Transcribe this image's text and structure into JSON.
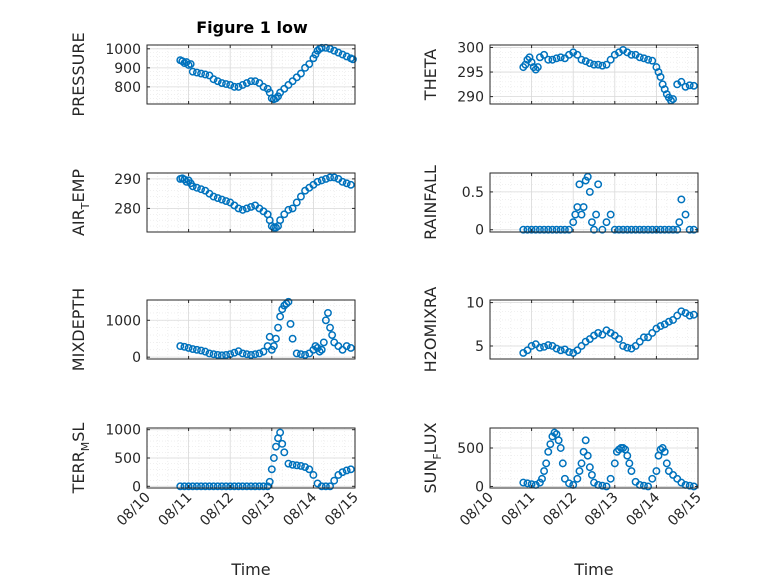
{
  "figure": {
    "title": "Figure 1 low",
    "marker_color": "#0072BD",
    "axis_color": "#262626",
    "grid_color": "#d9d9d9"
  },
  "chart_data": [
    {
      "type": "scatter",
      "panel": "top-left",
      "title": "Figure 1 low",
      "ylabel": "PRESSURE",
      "xlabel": "",
      "ylim": [
        710,
        1020
      ],
      "yticks": [
        800,
        900,
        1000
      ],
      "xlim": [
        0,
        5
      ],
      "xticks": [],
      "xticklabels": [],
      "grid": true,
      "minor_grid": true,
      "series": [
        {
          "x": [
            0.8,
            0.85,
            0.9,
            0.95,
            1.0,
            1.05,
            1.1,
            1.2,
            1.3,
            1.4,
            1.5,
            1.6,
            1.7,
            1.8,
            1.9,
            2.0,
            2.1,
            2.2,
            2.3,
            2.4,
            2.5,
            2.6,
            2.7,
            2.8,
            2.9,
            2.95,
            3.0,
            3.05,
            3.1,
            3.15,
            3.2,
            3.3,
            3.4,
            3.5,
            3.6,
            3.7,
            3.8,
            3.9,
            4.0,
            4.05,
            4.1,
            4.15,
            4.2,
            4.3,
            4.4,
            4.5,
            4.6,
            4.7,
            4.8,
            4.9,
            4.95
          ],
          "y": [
            940,
            935,
            925,
            930,
            915,
            920,
            880,
            875,
            870,
            865,
            860,
            840,
            830,
            820,
            815,
            810,
            800,
            800,
            810,
            820,
            830,
            830,
            820,
            800,
            790,
            770,
            740,
            735,
            740,
            750,
            770,
            790,
            810,
            830,
            850,
            870,
            900,
            920,
            950,
            970,
            990,
            1000,
            1005,
            1005,
            1000,
            990,
            980,
            970,
            960,
            950,
            945
          ]
        }
      ]
    },
    {
      "type": "scatter",
      "panel": "top-right",
      "ylabel": "THETA",
      "xlabel": "",
      "ylim": [
        288.5,
        300.5
      ],
      "yticks": [
        290,
        295,
        300
      ],
      "xlim": [
        0,
        5
      ],
      "xticks": [],
      "xticklabels": [],
      "grid": true,
      "minor_grid": true,
      "series": [
        {
          "x": [
            0.8,
            0.85,
            0.9,
            0.95,
            1.0,
            1.05,
            1.1,
            1.15,
            1.2,
            1.3,
            1.4,
            1.5,
            1.6,
            1.7,
            1.8,
            1.9,
            2.0,
            2.1,
            2.2,
            2.3,
            2.4,
            2.5,
            2.6,
            2.7,
            2.8,
            2.9,
            3.0,
            3.1,
            3.2,
            3.3,
            3.4,
            3.5,
            3.6,
            3.7,
            3.8,
            3.9,
            4.0,
            4.05,
            4.1,
            4.15,
            4.2,
            4.25,
            4.3,
            4.35,
            4.4,
            4.5,
            4.6,
            4.7,
            4.8,
            4.9
          ],
          "y": [
            296,
            296.5,
            297.5,
            298,
            297,
            296,
            295.5,
            296,
            298,
            298.5,
            297.5,
            297.5,
            297.8,
            298,
            297.8,
            298.5,
            299,
            298.5,
            297.5,
            297.2,
            296.8,
            296.5,
            296.5,
            296.3,
            296.5,
            297.5,
            298.5,
            299,
            299.5,
            299,
            298.5,
            298.5,
            298,
            297.8,
            297.5,
            297.3,
            296,
            295,
            294,
            292.5,
            291.5,
            290.5,
            289.8,
            289.2,
            289.5,
            292.5,
            293,
            292,
            292.3,
            292.2
          ]
        }
      ]
    },
    {
      "type": "scatter",
      "panel": "second-left",
      "ylabel": "AIR",
      "ylabel_sub": "T",
      "ylabel_tail": "EMP",
      "xlabel": "",
      "ylim": [
        272,
        292
      ],
      "yticks": [
        280,
        290
      ],
      "xlim": [
        0,
        5
      ],
      "xticks": [],
      "xticklabels": [],
      "grid": true,
      "minor_grid": true,
      "series": [
        {
          "x": [
            0.8,
            0.85,
            0.9,
            0.95,
            1.0,
            1.05,
            1.1,
            1.2,
            1.3,
            1.4,
            1.5,
            1.6,
            1.7,
            1.8,
            1.9,
            2.0,
            2.1,
            2.2,
            2.3,
            2.4,
            2.5,
            2.6,
            2.7,
            2.8,
            2.9,
            2.95,
            3.0,
            3.05,
            3.1,
            3.15,
            3.2,
            3.3,
            3.4,
            3.5,
            3.6,
            3.7,
            3.8,
            3.9,
            4.0,
            4.1,
            4.2,
            4.3,
            4.4,
            4.5,
            4.6,
            4.7,
            4.8,
            4.9
          ],
          "y": [
            290,
            290.2,
            289.8,
            289,
            289.5,
            288.5,
            287.5,
            287,
            286.5,
            286,
            285,
            284,
            283.5,
            283,
            282.5,
            282,
            281,
            280,
            279.5,
            280,
            280.5,
            281,
            280,
            279,
            278,
            276,
            274,
            273.5,
            273.5,
            274,
            276,
            278,
            279.5,
            280,
            282,
            284,
            286,
            287,
            288,
            289,
            289.5,
            290,
            290.5,
            290.5,
            290,
            289,
            288.5,
            288
          ]
        }
      ]
    },
    {
      "type": "scatter",
      "panel": "second-right",
      "ylabel": "RAINFALL",
      "xlabel": "",
      "ylim": [
        -0.03,
        0.75
      ],
      "yticks": [
        0,
        0.5
      ],
      "xlim": [
        0,
        5
      ],
      "xticks": [],
      "xticklabels": [],
      "grid": true,
      "minor_grid": true,
      "series": [
        {
          "x": [
            0.8,
            0.9,
            1.0,
            1.1,
            1.2,
            1.3,
            1.4,
            1.5,
            1.6,
            1.7,
            1.8,
            1.9,
            2.0,
            2.05,
            2.1,
            2.15,
            2.2,
            2.25,
            2.3,
            2.35,
            2.4,
            2.45,
            2.5,
            2.55,
            2.6,
            2.7,
            2.8,
            2.9,
            3.0,
            3.1,
            3.2,
            3.3,
            3.4,
            3.5,
            3.6,
            3.7,
            3.8,
            3.9,
            4.0,
            4.1,
            4.2,
            4.3,
            4.4,
            4.5,
            4.55,
            4.6,
            4.7,
            4.8,
            4.9
          ],
          "y": [
            0,
            0,
            0,
            0,
            0,
            0,
            0,
            0,
            0,
            0,
            0,
            0,
            0.1,
            0.2,
            0.3,
            0.6,
            0.2,
            0.3,
            0.65,
            0.7,
            0.5,
            0.1,
            0,
            0.2,
            0.6,
            0,
            0.1,
            0.2,
            0,
            0,
            0,
            0,
            0,
            0,
            0,
            0,
            0,
            0,
            0,
            0,
            0,
            0,
            0,
            0,
            0.1,
            0.4,
            0.2,
            0,
            0
          ]
        }
      ]
    },
    {
      "type": "scatter",
      "panel": "third-left",
      "ylabel": "MIXDEPTH",
      "xlabel": "",
      "ylim": [
        -50,
        1550
      ],
      "yticks": [
        0,
        1000
      ],
      "xlim": [
        0,
        5
      ],
      "xticks": [],
      "xticklabels": [],
      "grid": true,
      "minor_grid": true,
      "series": [
        {
          "x": [
            0.8,
            0.9,
            1.0,
            1.1,
            1.2,
            1.3,
            1.4,
            1.5,
            1.6,
            1.7,
            1.8,
            1.9,
            2.0,
            2.1,
            2.2,
            2.3,
            2.4,
            2.5,
            2.6,
            2.7,
            2.8,
            2.9,
            2.95,
            3.0,
            3.05,
            3.1,
            3.15,
            3.2,
            3.25,
            3.3,
            3.35,
            3.4,
            3.45,
            3.5,
            3.6,
            3.7,
            3.8,
            3.9,
            4.0,
            4.05,
            4.1,
            4.15,
            4.2,
            4.25,
            4.3,
            4.35,
            4.4,
            4.45,
            4.5,
            4.6,
            4.7,
            4.8,
            4.9
          ],
          "y": [
            300,
            280,
            250,
            220,
            200,
            180,
            150,
            100,
            80,
            60,
            50,
            60,
            80,
            120,
            160,
            100,
            80,
            60,
            80,
            100,
            150,
            300,
            550,
            200,
            300,
            500,
            800,
            1100,
            1300,
            1400,
            1450,
            1500,
            900,
            500,
            100,
            80,
            60,
            100,
            200,
            300,
            250,
            150,
            200,
            400,
            1000,
            1200,
            800,
            600,
            400,
            300,
            200,
            300,
            250
          ]
        }
      ]
    },
    {
      "type": "scatter",
      "panel": "third-right",
      "ylabel": "H2OMIXRA",
      "xlabel": "",
      "ylim": [
        3.5,
        10.3
      ],
      "yticks": [
        5,
        10
      ],
      "xlim": [
        0,
        5
      ],
      "xticks": [],
      "xticklabels": [],
      "grid": true,
      "minor_grid": true,
      "series": [
        {
          "x": [
            0.8,
            0.9,
            1.0,
            1.1,
            1.2,
            1.3,
            1.4,
            1.5,
            1.6,
            1.7,
            1.8,
            1.9,
            2.0,
            2.1,
            2.2,
            2.3,
            2.4,
            2.5,
            2.6,
            2.7,
            2.8,
            2.9,
            3.0,
            3.1,
            3.2,
            3.3,
            3.4,
            3.5,
            3.6,
            3.7,
            3.8,
            3.9,
            4.0,
            4.1,
            4.2,
            4.3,
            4.4,
            4.5,
            4.6,
            4.7,
            4.8,
            4.9
          ],
          "y": [
            4.2,
            4.5,
            5,
            5.2,
            4.8,
            4.9,
            5.1,
            5,
            4.7,
            4.5,
            4.6,
            4.3,
            4.2,
            4.5,
            5,
            5.5,
            5.8,
            6.2,
            6.5,
            6.3,
            6.8,
            6.5,
            6.2,
            5.8,
            5,
            4.8,
            4.7,
            5,
            5.5,
            6,
            6,
            6.5,
            7,
            7.3,
            7.5,
            7.8,
            8,
            8.5,
            9,
            8.8,
            8.5,
            8.6
          ]
        }
      ]
    },
    {
      "type": "scatter",
      "panel": "bottom-left",
      "ylabel": "TERR",
      "ylabel_sub": "M",
      "ylabel_tail": "SL",
      "xlabel": "Time",
      "ylim": [
        -30,
        1030
      ],
      "yticks": [
        0,
        500,
        1000
      ],
      "xlim": [
        0,
        5
      ],
      "xticks": [
        0,
        1,
        2,
        3,
        4,
        5
      ],
      "xticklabels": [
        "08/10",
        "08/11",
        "08/12",
        "08/13",
        "08/14",
        "08/15"
      ],
      "grid": true,
      "minor_grid": true,
      "series": [
        {
          "x": [
            0.8,
            0.9,
            1.0,
            1.1,
            1.2,
            1.3,
            1.4,
            1.5,
            1.6,
            1.7,
            1.8,
            1.9,
            2.0,
            2.1,
            2.2,
            2.3,
            2.4,
            2.5,
            2.6,
            2.7,
            2.8,
            2.9,
            2.95,
            3.0,
            3.05,
            3.1,
            3.15,
            3.2,
            3.25,
            3.3,
            3.4,
            3.5,
            3.6,
            3.7,
            3.8,
            3.9,
            4.0,
            4.1,
            4.2,
            4.3,
            4.4,
            4.5,
            4.6,
            4.7,
            4.8,
            4.9
          ],
          "y": [
            0,
            0,
            0,
            0,
            0,
            0,
            0,
            0,
            0,
            0,
            0,
            0,
            0,
            0,
            0,
            0,
            0,
            0,
            0,
            0,
            0,
            0,
            80,
            300,
            500,
            700,
            850,
            950,
            750,
            600,
            400,
            380,
            370,
            360,
            340,
            300,
            200,
            50,
            0,
            0,
            0,
            100,
            200,
            250,
            280,
            300
          ]
        }
      ]
    },
    {
      "type": "scatter",
      "panel": "bottom-right",
      "ylabel": "SUN",
      "ylabel_sub": "F",
      "ylabel_tail": "LUX",
      "xlabel": "Time",
      "ylim": [
        -20,
        760
      ],
      "yticks": [
        0,
        500
      ],
      "xlim": [
        0,
        5
      ],
      "xticks": [
        0,
        1,
        2,
        3,
        4,
        5
      ],
      "xticklabels": [
        "08/10",
        "08/11",
        "08/12",
        "08/13",
        "08/14",
        "08/15"
      ],
      "grid": true,
      "minor_grid": true,
      "series": [
        {
          "x": [
            0.8,
            0.9,
            1.0,
            1.1,
            1.2,
            1.25,
            1.3,
            1.35,
            1.4,
            1.45,
            1.5,
            1.55,
            1.6,
            1.65,
            1.7,
            1.75,
            1.8,
            1.9,
            2.0,
            2.1,
            2.15,
            2.2,
            2.25,
            2.3,
            2.35,
            2.4,
            2.45,
            2.5,
            2.6,
            2.7,
            2.8,
            2.9,
            3.0,
            3.05,
            3.1,
            3.15,
            3.2,
            3.25,
            3.3,
            3.35,
            3.4,
            3.5,
            3.6,
            3.7,
            3.8,
            3.9,
            4.0,
            4.05,
            4.1,
            4.15,
            4.2,
            4.25,
            4.3,
            4.4,
            4.5,
            4.6,
            4.7,
            4.8,
            4.9
          ],
          "y": [
            50,
            40,
            30,
            20,
            50,
            100,
            200,
            300,
            450,
            550,
            650,
            700,
            680,
            600,
            500,
            300,
            100,
            40,
            20,
            100,
            200,
            300,
            450,
            600,
            400,
            250,
            150,
            50,
            20,
            10,
            0,
            100,
            300,
            450,
            480,
            500,
            500,
            480,
            400,
            300,
            200,
            60,
            20,
            10,
            0,
            100,
            200,
            400,
            480,
            500,
            450,
            300,
            200,
            150,
            100,
            50,
            20,
            10,
            0
          ]
        }
      ]
    }
  ]
}
